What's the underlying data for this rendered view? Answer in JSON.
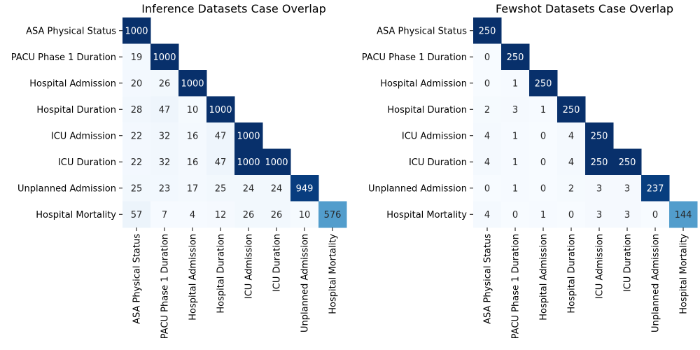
{
  "chart_data": [
    {
      "type": "heatmap",
      "title": "Inference Datasets Case Overlap",
      "rows": [
        "ASA Physical Status",
        "PACU Phase 1 Duration",
        "Hospital Admission",
        "Hospital Duration",
        "ICU Admission",
        "ICU Duration",
        "Unplanned Admission",
        "Hospital Mortality"
      ],
      "columns": [
        "ASA Physical Status",
        "PACU Phase 1 Duration",
        "Hospital Admission",
        "Hospital Duration",
        "ICU Admission",
        "ICU Duration",
        "Unplanned Admission",
        "Hospital Mortality"
      ],
      "values": [
        [
          1000,
          null,
          null,
          null,
          null,
          null,
          null,
          null
        ],
        [
          19,
          1000,
          null,
          null,
          null,
          null,
          null,
          null
        ],
        [
          20,
          26,
          1000,
          null,
          null,
          null,
          null,
          null
        ],
        [
          28,
          47,
          10,
          1000,
          null,
          null,
          null,
          null
        ],
        [
          22,
          32,
          16,
          47,
          1000,
          null,
          null,
          null
        ],
        [
          22,
          32,
          16,
          47,
          1000,
          1000,
          null,
          null
        ],
        [
          25,
          23,
          17,
          25,
          24,
          24,
          949,
          null
        ],
        [
          57,
          7,
          4,
          12,
          26,
          26,
          10,
          576
        ]
      ],
      "color_range": [
        0,
        1000
      ],
      "colormap": "Blues",
      "masked": "upper-triangle",
      "colorbar": false
    },
    {
      "type": "heatmap",
      "title": "Fewshot Datasets Case Overlap",
      "rows": [
        "ASA Physical Status",
        "PACU Phase 1 Duration",
        "Hospital Admission",
        "Hospital Duration",
        "ICU Admission",
        "ICU Duration",
        "Unplanned Admission",
        "Hospital Mortality"
      ],
      "columns": [
        "ASA Physical Status",
        "PACU Phase 1 Duration",
        "Hospital Admission",
        "Hospital Duration",
        "ICU Admission",
        "ICU Duration",
        "Unplanned Admission",
        "Hospital Mortality"
      ],
      "values": [
        [
          250,
          null,
          null,
          null,
          null,
          null,
          null,
          null
        ],
        [
          0,
          250,
          null,
          null,
          null,
          null,
          null,
          null
        ],
        [
          0,
          1,
          250,
          null,
          null,
          null,
          null,
          null
        ],
        [
          2,
          3,
          1,
          250,
          null,
          null,
          null,
          null
        ],
        [
          4,
          1,
          0,
          4,
          250,
          null,
          null,
          null
        ],
        [
          4,
          1,
          0,
          4,
          250,
          250,
          null,
          null
        ],
        [
          0,
          1,
          0,
          2,
          3,
          3,
          237,
          null
        ],
        [
          4,
          0,
          1,
          0,
          3,
          3,
          0,
          144
        ]
      ],
      "color_range": [
        0,
        250
      ],
      "colormap": "Blues",
      "masked": "upper-triangle",
      "colorbar": false
    }
  ]
}
